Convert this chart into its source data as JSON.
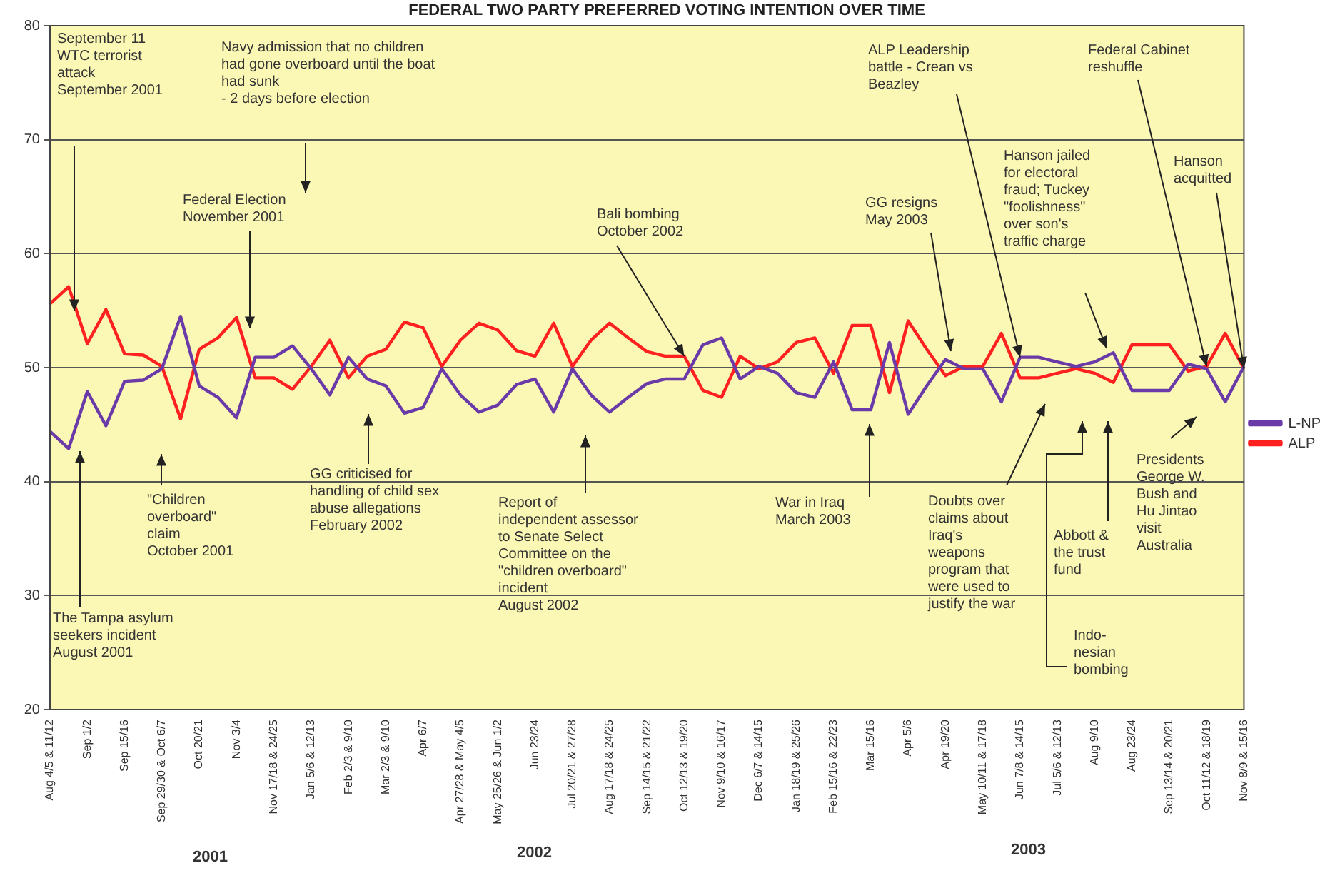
{
  "chart_data": {
    "type": "line",
    "title": "FEDERAL TWO PARTY PREFERRED VOTING INTENTION OVER TIME",
    "categories": [
      "Aug 4/5 & 11/12",
      null,
      "Sep 1/2",
      null,
      "Sep 15/16",
      null,
      "Sep 29/30 & Oct 6/7",
      null,
      "Oct 20/21",
      null,
      "Nov 3/4",
      null,
      "Nov 17/18 & 24/25",
      null,
      "Jan 5/6 & 12/13",
      null,
      "Feb 2/3 & 9/10",
      null,
      "Mar 2/3 & 9/10",
      null,
      "Apr 6/7",
      null,
      "Apr 27/28 & May 4/5",
      null,
      "May 25/26 & Jun 1/2",
      null,
      "Jun 23/24",
      null,
      "Jul 20/21 & 27/28",
      null,
      "Aug 17/18 & 24/25",
      null,
      "Sep 14/15 & 21/22",
      null,
      "Oct 12/13 & 19/20",
      null,
      "Nov 9/10 & 16/17",
      null,
      "Dec 6/7 & 14/15",
      null,
      "Jan 18/19 & 25/26",
      null,
      "Feb 15/16 & 22/23",
      null,
      "Mar 15/16",
      null,
      "Apr 5/6",
      null,
      "Apr 19/20",
      null,
      "May 10/11 & 17/18",
      null,
      "Jun 7/8 & 14/15",
      null,
      "Jul 5/6 & 12/13",
      null,
      "Aug 9/10",
      null,
      "Aug 23/24",
      null,
      "Sep 13/14 & 20/21",
      null,
      "Oct 11/12 & 18/19",
      null,
      "Nov 8/9 & 15/16"
    ],
    "series": [
      {
        "name": "L-NP",
        "color": "#6a3aa8",
        "values": [
          44.4,
          42.9,
          47.9,
          44.9,
          48.8,
          48.9,
          49.9,
          54.5,
          48.4,
          47.4,
          45.6,
          50.9,
          50.9,
          51.9,
          49.9,
          47.6,
          50.9,
          49.0,
          48.4,
          46.0,
          46.5,
          49.9,
          47.6,
          46.1,
          46.7,
          48.5,
          49.0,
          46.1,
          49.9,
          47.6,
          46.1,
          47.4,
          48.6,
          49.0,
          49.0,
          52.0,
          52.6,
          49.0,
          50.1,
          49.5,
          47.8,
          47.4,
          50.5,
          46.3,
          46.3,
          52.2,
          45.9,
          48.4,
          50.7,
          49.9,
          49.9,
          47.0,
          50.9,
          50.9,
          50.5,
          50.1,
          50.5,
          51.3,
          48.0,
          48.0,
          48.0,
          50.3,
          49.9,
          47.0,
          50.1
        ]
      },
      {
        "name": "ALP",
        "color": "#ff2020",
        "values": [
          55.6,
          57.1,
          52.1,
          55.1,
          51.2,
          51.1,
          50.1,
          45.5,
          51.6,
          52.6,
          54.4,
          49.1,
          49.1,
          48.1,
          50.1,
          52.4,
          49.1,
          51.0,
          51.6,
          54.0,
          53.5,
          50.1,
          52.4,
          53.9,
          53.3,
          51.5,
          51.0,
          53.9,
          50.1,
          52.4,
          53.9,
          52.6,
          51.4,
          51.0,
          51.0,
          48.0,
          47.4,
          51.0,
          49.9,
          50.5,
          52.2,
          52.6,
          49.5,
          53.7,
          53.7,
          47.8,
          54.1,
          51.6,
          49.3,
          50.1,
          50.1,
          53.0,
          49.1,
          49.1,
          49.5,
          49.9,
          49.5,
          48.7,
          52.0,
          52.0,
          52.0,
          49.7,
          50.1,
          53.0,
          49.9
        ]
      }
    ],
    "ylim": [
      20,
      80
    ],
    "yticks": [
      20,
      30,
      40,
      50,
      60,
      70,
      80
    ],
    "grid": "y",
    "legend": "right",
    "marker": "none",
    "line_style": "solid",
    "annotations": [
      "September 11\nWTC terrorist\nattack\nSeptember 2001",
      "Navy admission that no children\nhad gone overboard until the boat\nhad sunk\n- 2 days before election",
      "Federal Election\nNovember 2001",
      {
        "text": "Bali bombing\nOctober 2002",
        "x": "Oct 12/13 & 19/20",
        "y": 51.0
      },
      "GG resigns\nMay 2003",
      {
        "text": "ALP Leadership\nbattle - Crean vs\nBeazley",
        "x": "Jun 7/8 & 14/15",
        "y": 50.9
      },
      "Hanson jailed\nfor electoral\nfraud; Tuckey\n\"foolishness\"\nover son's\ntraffic charge",
      {
        "text": "Federal Cabinet\nreshuffle",
        "x": "Oct 11/12 & 18/19",
        "y": 50.1
      },
      {
        "text": "Hanson\nacquitted",
        "x": "Nov 8/9 & 15/16",
        "y": 49.9
      },
      "The Tampa asylum\nseekers incident\nAugust 2001",
      "\"Children\noverboard\"\nclaim\nOctober 2001",
      "GG criticised for\nhandling of child sex\nabuse allegations\nFebruary 2002",
      "Report of\nindependent assessor\nto Senate Select\nCommittee on the\n\"children overboard\"\nincident\nAugust 2002",
      "War in Iraq\nMarch 2003",
      "Doubts over\nclaims about\nIraq's\nweapons\nprogram that\nwere used to\njustify the war",
      "Abbott &\nthe trust\nfund",
      "Indo-\nnesian\nbombing",
      "Presidents\nGeorge W.\nBush and\nHu Jintao\nvisit\nAustralia",
      "2001",
      "2002",
      "2003"
    ]
  }
}
